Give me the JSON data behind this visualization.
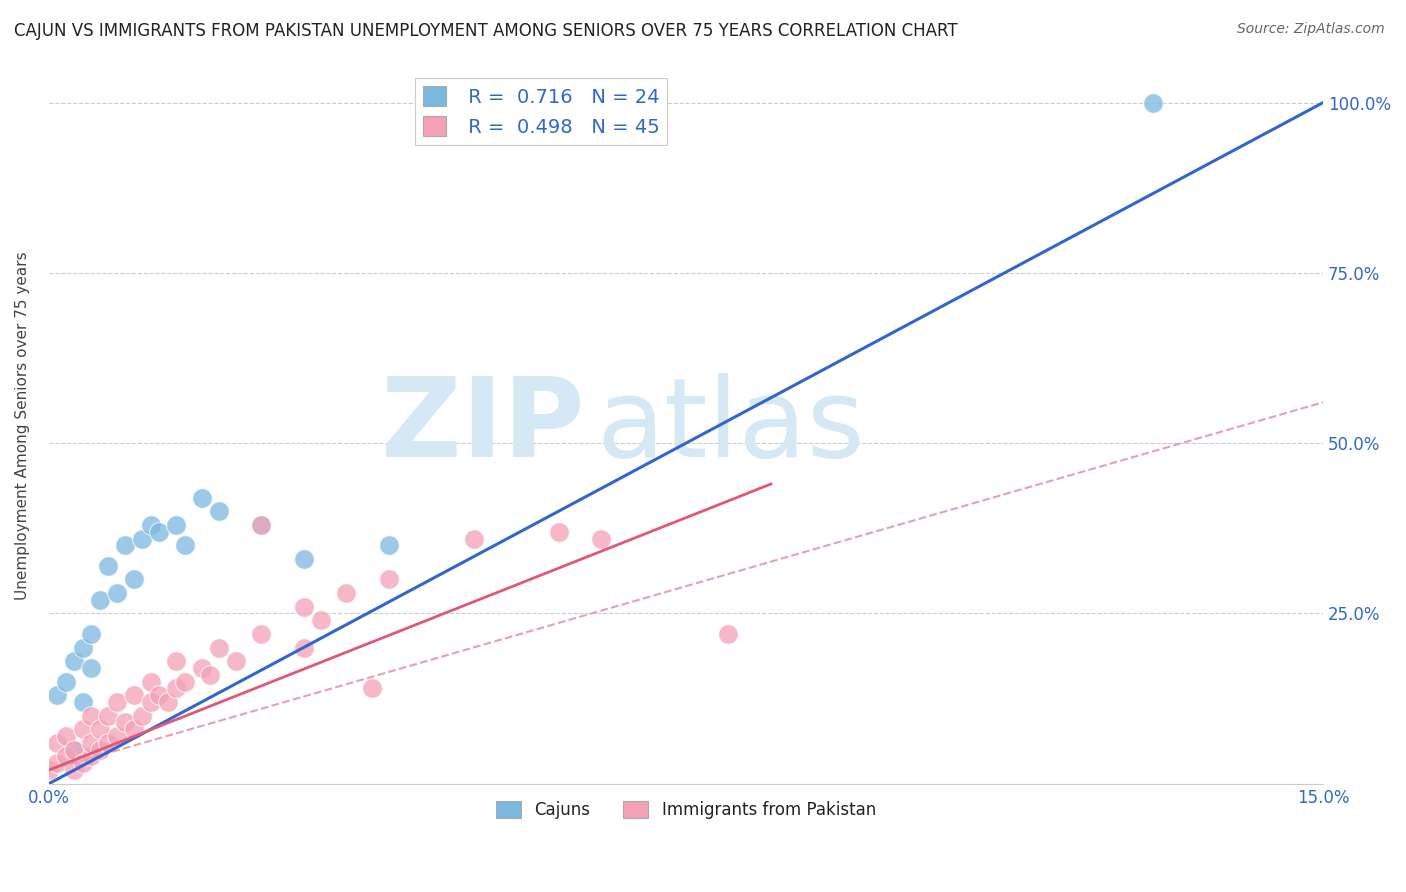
{
  "title": "CAJUN VS IMMIGRANTS FROM PAKISTAN UNEMPLOYMENT AMONG SENIORS OVER 75 YEARS CORRELATION CHART",
  "source": "Source: ZipAtlas.com",
  "ylabel": "Unemployment Among Seniors over 75 years",
  "xlim": [
    0.0,
    0.15
  ],
  "ylim": [
    0.0,
    1.05
  ],
  "cajun_R": 0.716,
  "cajun_N": 24,
  "pakistan_R": 0.498,
  "pakistan_N": 45,
  "cajun_color": "#7ab8e0",
  "pakistan_color": "#f4a0b5",
  "cajun_line_color": "#3366cc",
  "pakistan_line_solid_color": "#e05878",
  "pakistan_line_dash_color": "#e8a0b0",
  "watermark_zip": "ZIP",
  "watermark_atlas": "atlas",
  "watermark_color": "#d4e8f5",
  "background_color": "#ffffff",
  "cajun_x": [
    0.001,
    0.002,
    0.003,
    0.003,
    0.004,
    0.004,
    0.005,
    0.005,
    0.006,
    0.007,
    0.008,
    0.009,
    0.01,
    0.011,
    0.012,
    0.013,
    0.015,
    0.016,
    0.018,
    0.02,
    0.025,
    0.03,
    0.04,
    0.13
  ],
  "cajun_y": [
    0.13,
    0.15,
    0.05,
    0.18,
    0.12,
    0.2,
    0.17,
    0.22,
    0.27,
    0.32,
    0.28,
    0.35,
    0.3,
    0.36,
    0.38,
    0.37,
    0.38,
    0.35,
    0.42,
    0.4,
    0.38,
    0.33,
    0.35,
    1.0
  ],
  "pakistan_x": [
    0.0,
    0.001,
    0.001,
    0.002,
    0.002,
    0.003,
    0.003,
    0.004,
    0.004,
    0.005,
    0.005,
    0.005,
    0.006,
    0.006,
    0.007,
    0.007,
    0.008,
    0.008,
    0.009,
    0.01,
    0.01,
    0.011,
    0.012,
    0.012,
    0.013,
    0.014,
    0.015,
    0.015,
    0.016,
    0.018,
    0.019,
    0.02,
    0.022,
    0.025,
    0.025,
    0.03,
    0.03,
    0.032,
    0.035,
    0.038,
    0.04,
    0.05,
    0.06,
    0.065,
    0.08
  ],
  "pakistan_y": [
    0.02,
    0.03,
    0.06,
    0.04,
    0.07,
    0.02,
    0.05,
    0.03,
    0.08,
    0.04,
    0.06,
    0.1,
    0.05,
    0.08,
    0.06,
    0.1,
    0.07,
    0.12,
    0.09,
    0.08,
    0.13,
    0.1,
    0.12,
    0.15,
    0.13,
    0.12,
    0.14,
    0.18,
    0.15,
    0.17,
    0.16,
    0.2,
    0.18,
    0.22,
    0.38,
    0.2,
    0.26,
    0.24,
    0.28,
    0.14,
    0.3,
    0.36,
    0.37,
    0.36,
    0.22
  ],
  "cajun_line_x": [
    0.0,
    0.15
  ],
  "cajun_line_y": [
    0.0,
    1.0
  ],
  "pakistan_solid_line_x": [
    0.0,
    0.085
  ],
  "pakistan_solid_line_y": [
    0.02,
    0.44
  ],
  "pakistan_dash_line_x": [
    0.0,
    0.15
  ],
  "pakistan_dash_line_y": [
    0.02,
    0.56
  ]
}
